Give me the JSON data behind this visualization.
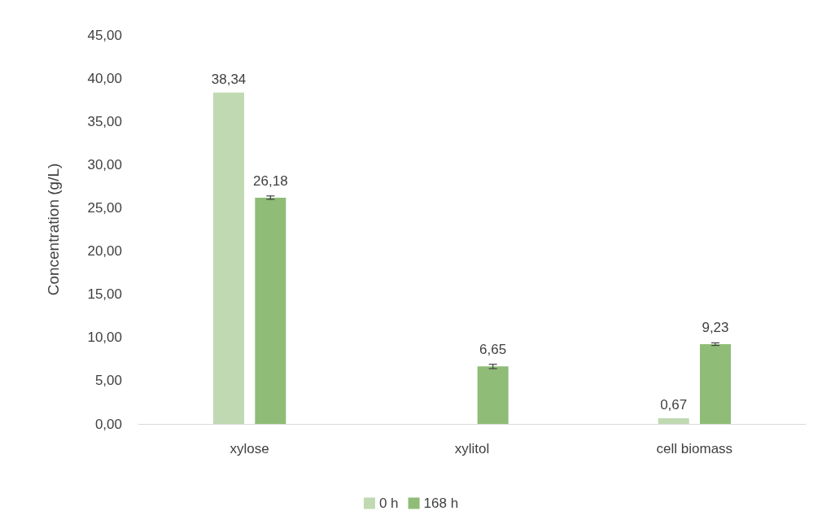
{
  "chart_data": {
    "type": "bar",
    "ylabel": "Concentration (g/L)",
    "categories": [
      "xylose",
      "xylitol",
      "cell biomass"
    ],
    "series": [
      {
        "name": "0 h",
        "color": "#c0d9b2",
        "values": [
          38.34,
          null,
          0.67
        ],
        "value_labels": [
          "38,34",
          null,
          "0,67"
        ]
      },
      {
        "name": "168 h",
        "color": "#8fbc77",
        "values": [
          26.18,
          6.65,
          9.23
        ],
        "value_labels": [
          "26,18",
          "6,65",
          "9,23"
        ],
        "errors": [
          0.2,
          0.25,
          0.15
        ]
      }
    ],
    "ylim": [
      0,
      45
    ],
    "yticks": [
      {
        "value": 0,
        "label": "0,00"
      },
      {
        "value": 5,
        "label": "5,00"
      },
      {
        "value": 10,
        "label": "10,00"
      },
      {
        "value": 15,
        "label": "15,00"
      },
      {
        "value": 20,
        "label": "20,00"
      },
      {
        "value": 25,
        "label": "25,00"
      },
      {
        "value": 30,
        "label": "30,00"
      },
      {
        "value": 35,
        "label": "35,00"
      },
      {
        "value": 40,
        "label": "40,00"
      },
      {
        "value": 45,
        "label": "45,00"
      }
    ],
    "grid": false,
    "legend": "bottom"
  }
}
